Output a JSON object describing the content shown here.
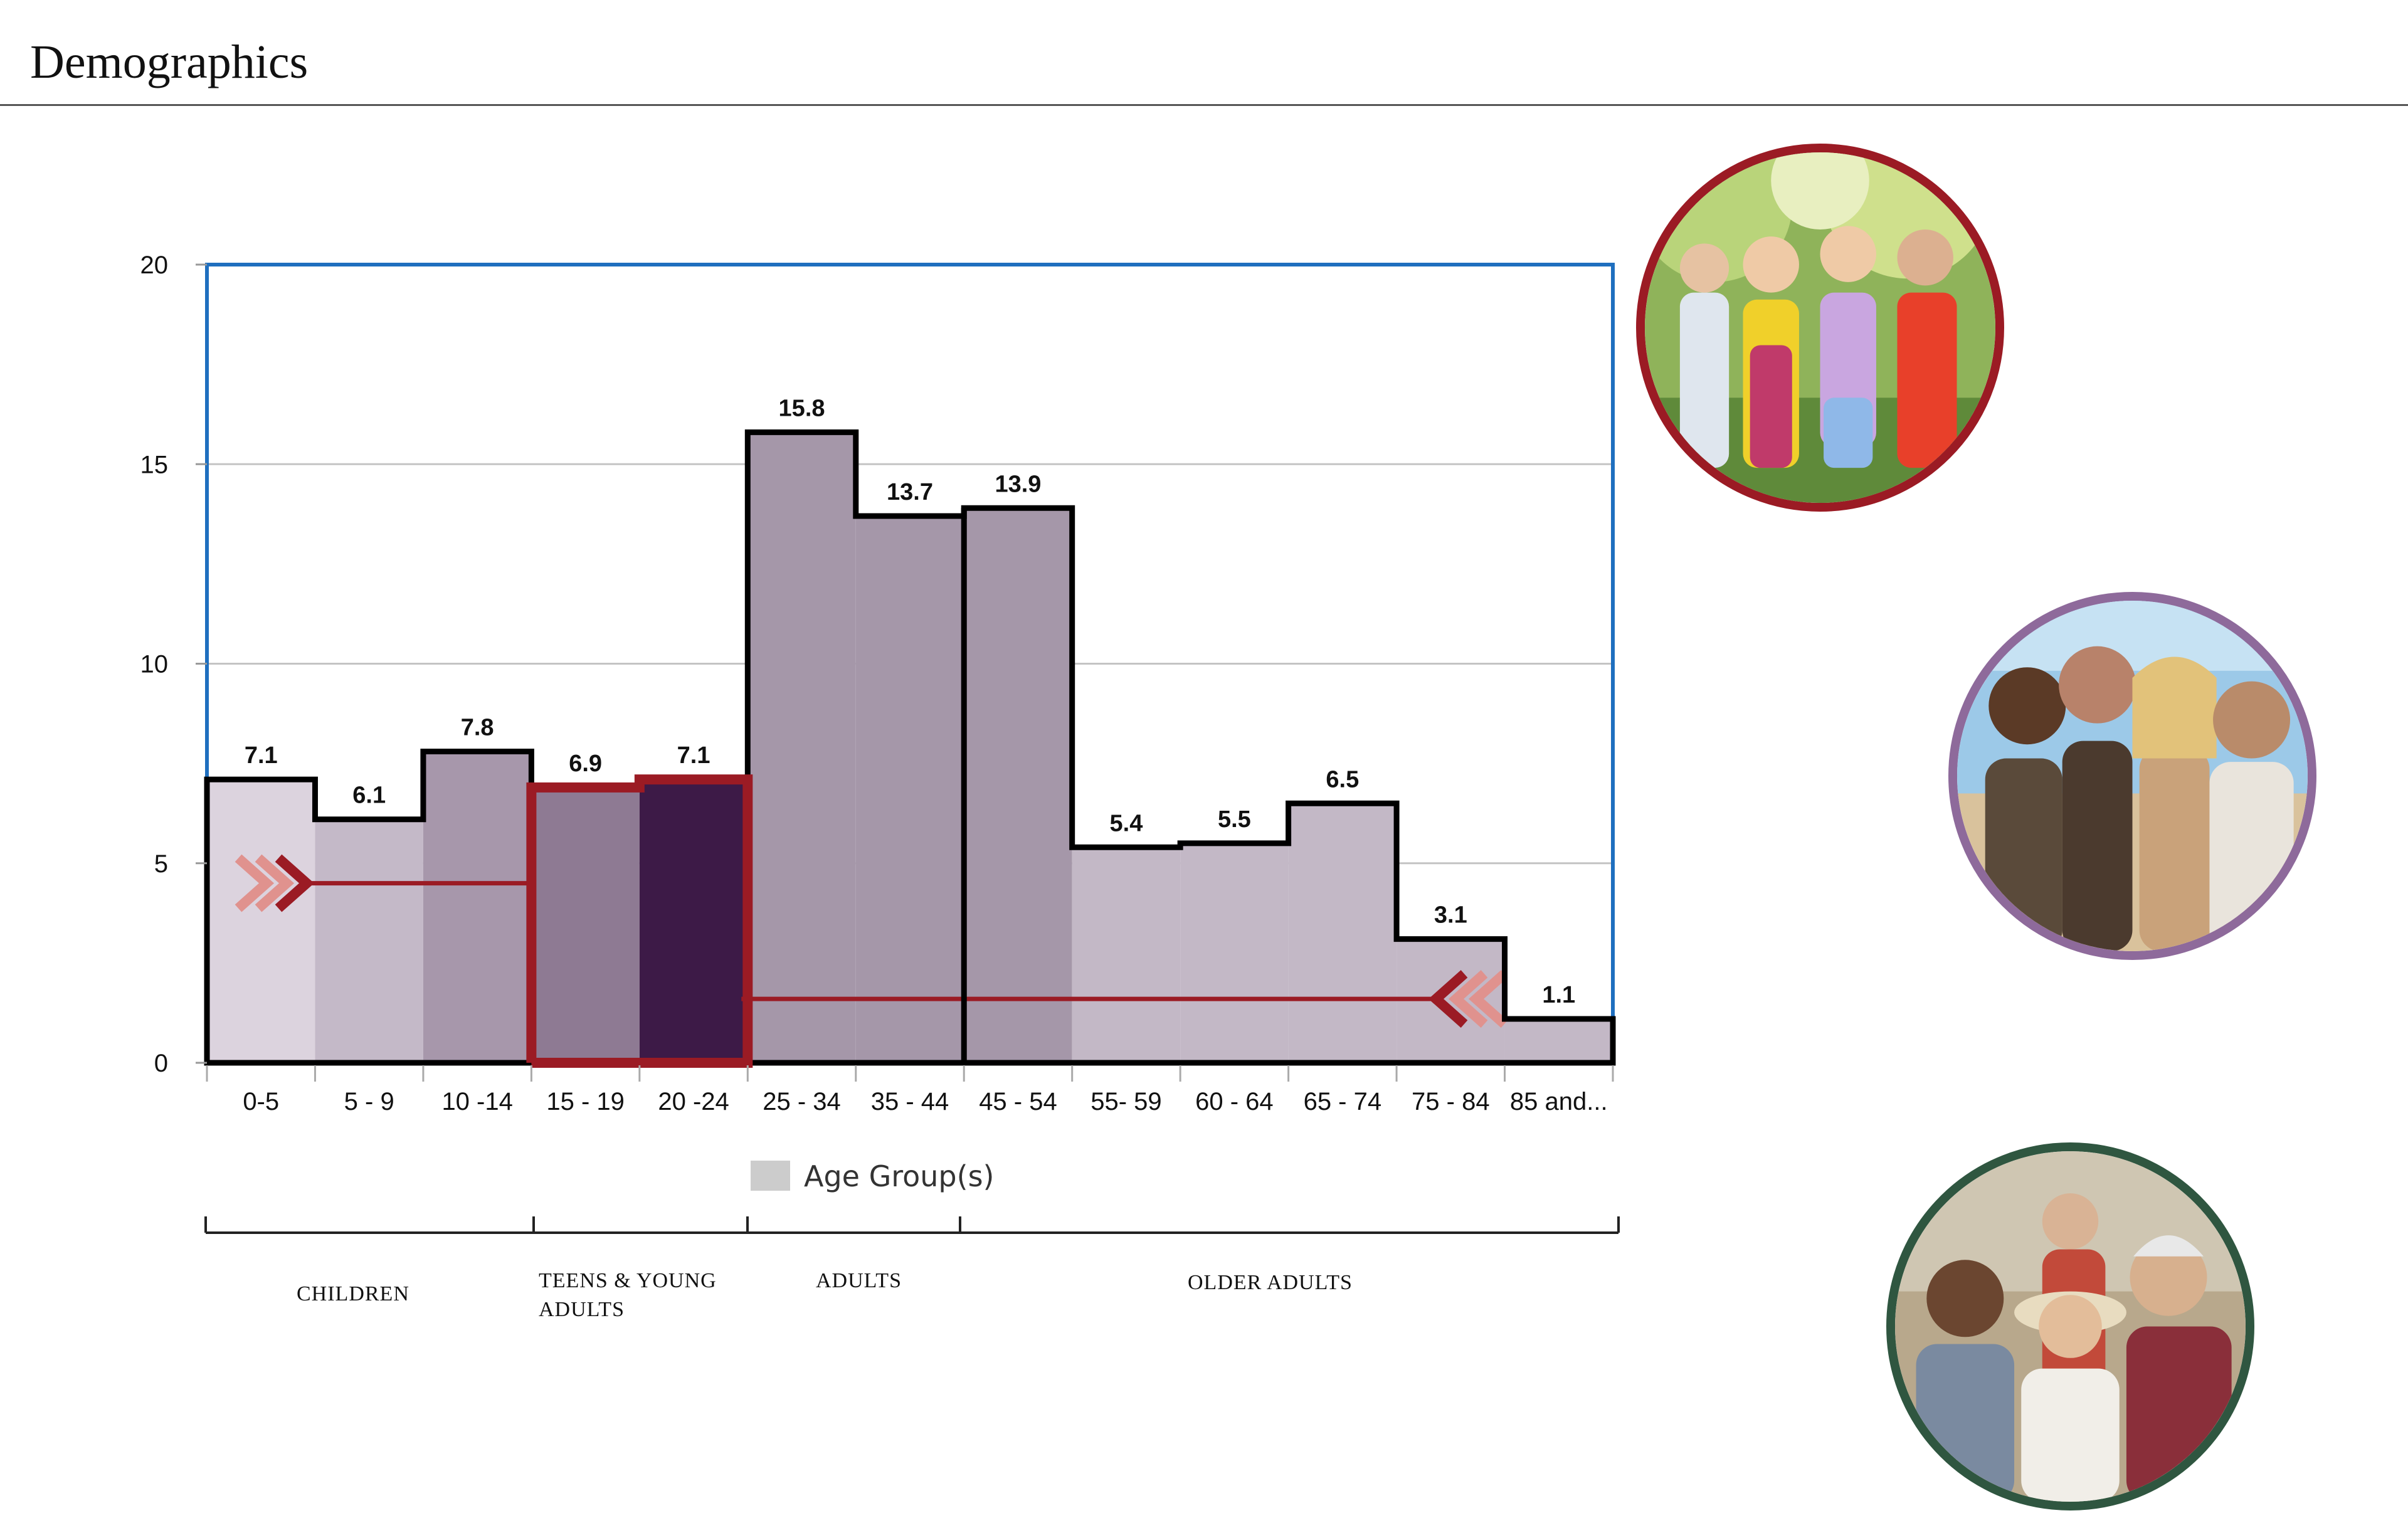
{
  "page": {
    "title": "Demographics"
  },
  "chart_data": {
    "type": "bar",
    "title": "",
    "xlabel": "",
    "ylabel": "",
    "ylim": [
      0,
      20
    ],
    "yticks": [
      0,
      5,
      10,
      15,
      20
    ],
    "grid": true,
    "legend": {
      "label": "Age Group(s)",
      "position": "bottom"
    },
    "categories": [
      "0-5",
      "5 - 9",
      "10 -14",
      "15 - 19",
      "20 -24",
      "25 - 34",
      "35 - 44",
      "45 - 54",
      "55- 59",
      "60 - 64",
      "65 - 74",
      "75 - 84",
      "85 and..."
    ],
    "values": [
      7.1,
      6.1,
      7.8,
      6.9,
      7.1,
      15.8,
      13.7,
      13.9,
      5.4,
      5.5,
      6.5,
      3.1,
      1.1
    ],
    "data_labels": [
      "7.1",
      "6.1",
      "7.8",
      "6.9",
      "7.1",
      "15.8",
      "13.7",
      "13.9",
      "5.4",
      "5.5",
      "6.5",
      "3.1",
      "1.1"
    ],
    "bar_colors": [
      "#dcd3de",
      "#c4b9c8",
      "#a797ab",
      "#8e7a93",
      "#3d1a47",
      "#a597a9",
      "#a597a9",
      "#a597a9",
      "#c3b8c6",
      "#c3b8c6",
      "#c3b8c6",
      "#c3b8c6",
      "#c3b8c6"
    ],
    "highlight_color": "#9b1b24",
    "frame_color": "#1f6fbf",
    "groups": [
      {
        "label_lines": [
          "CHILDREN"
        ],
        "start_index": 0,
        "end_index": 2
      },
      {
        "label_lines": [
          "TEENS & YOUNG",
          "ADULTS"
        ],
        "start_index": 3,
        "end_index": 4
      },
      {
        "label_lines": [
          "ADULTS"
        ],
        "start_index": 5,
        "end_index": 6
      },
      {
        "label_lines": [
          "OLDER ADULTS"
        ],
        "start_index": 7,
        "end_index": 12
      }
    ]
  },
  "photos": [
    {
      "subject": "children",
      "ring_color": "#9b1b24"
    },
    {
      "subject": "young adults",
      "ring_color": "#8e6a9b"
    },
    {
      "subject": "older adults",
      "ring_color": "#2f5640"
    }
  ]
}
